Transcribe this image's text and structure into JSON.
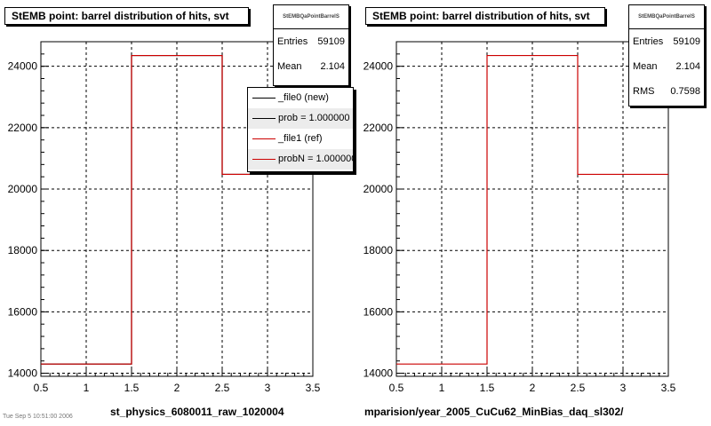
{
  "chart_data": [
    {
      "type": "step",
      "title": "StEMB point: barrel distribution of hits, svt",
      "xlabel": "st_physics_6080011_raw_1020004",
      "xlim": [
        0.5,
        3.5
      ],
      "ylim": [
        13900,
        24800
      ],
      "xticks": [
        "0.5",
        "1",
        "1.5",
        "2",
        "2.5",
        "3",
        "3.5"
      ],
      "yticks": [
        "14000",
        "16000",
        "18000",
        "20000",
        "22000",
        "24000"
      ],
      "grid": true,
      "bins": [
        [
          0.5,
          1.5
        ],
        [
          1.5,
          2.5
        ],
        [
          2.5,
          3.5
        ]
      ],
      "series": [
        {
          "name": "_file0 (new)",
          "color": "#000000",
          "values": [
            14300,
            24350,
            20480
          ]
        },
        {
          "name": "_file1 (ref)",
          "color": "#cc0000",
          "values": [
            14300,
            24350,
            20480
          ]
        }
      ],
      "stats": {
        "name": "StEMBQaPointBarrelS",
        "rows": [
          {
            "key": "Entries",
            "value": "59109"
          },
          {
            "key": "Mean",
            "value": "2.104"
          }
        ]
      },
      "legend": {
        "placement": "top-right",
        "entries": [
          {
            "label": "_file0 (new)",
            "color": "#000000"
          },
          {
            "label": "prob = 1.000000",
            "color": "#000000"
          },
          {
            "label": "_file1 (ref)",
            "color": "#cc0000"
          },
          {
            "label": "probN = 1.000000",
            "color": "#cc0000"
          }
        ]
      }
    },
    {
      "type": "step",
      "title": "StEMB point: barrel distribution of hits, svt",
      "xlabel": "mparision/year_2005_CuCu62_MinBias_daq_sl302/",
      "xlim": [
        0.5,
        3.5
      ],
      "ylim": [
        13900,
        24800
      ],
      "xticks": [
        "0.5",
        "1",
        "1.5",
        "2",
        "2.5",
        "3",
        "3.5"
      ],
      "yticks": [
        "14000",
        "16000",
        "18000",
        "20000",
        "22000",
        "24000"
      ],
      "grid": true,
      "bins": [
        [
          0.5,
          1.5
        ],
        [
          1.5,
          2.5
        ],
        [
          2.5,
          3.5
        ]
      ],
      "series": [
        {
          "name": "",
          "color": "#cc0000",
          "values": [
            14300,
            24350,
            20480
          ]
        }
      ],
      "stats": {
        "name": "StEMBQaPointBarrelS",
        "rows": [
          {
            "key": "Entries",
            "value": "59109"
          },
          {
            "key": "Mean",
            "value": "2.104"
          },
          {
            "key": "RMS",
            "value": "0.7598"
          }
        ]
      }
    }
  ],
  "footer_text": "Tue Sep 5 10:51:00 2006"
}
